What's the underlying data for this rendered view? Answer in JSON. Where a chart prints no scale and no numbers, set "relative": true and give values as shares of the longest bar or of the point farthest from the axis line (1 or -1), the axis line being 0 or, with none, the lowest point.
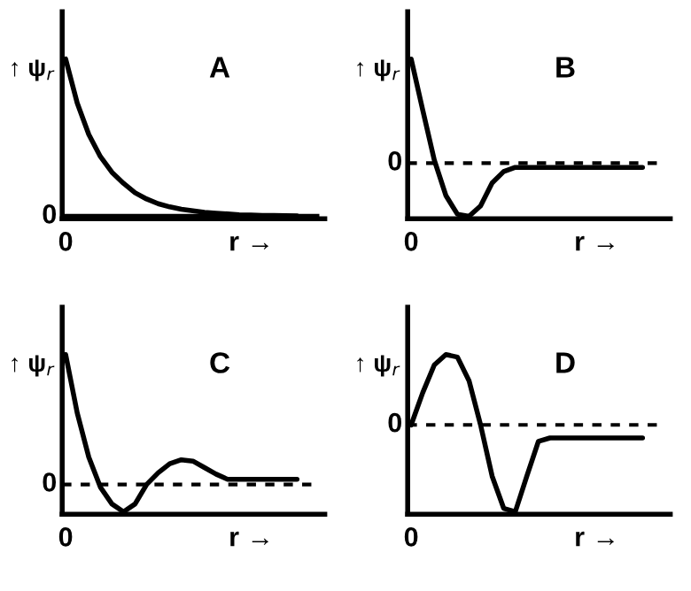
{
  "chart_data": [
    {
      "type": "line",
      "relative": true,
      "ylabel": "↑ ψ$_{r}$",
      "xlabel": "r →",
      "annotations": [
        "A",
        "0"
      ],
      "color": "#000000",
      "categories": [
        null,
        null,
        null,
        null,
        null,
        null,
        null,
        null,
        null,
        null,
        null,
        null,
        null,
        null,
        null,
        null,
        null,
        null,
        null,
        null,
        null
      ],
      "values": [
        1,
        0.72,
        0.52,
        0.38,
        0.28,
        0.21,
        0.15,
        0.11,
        0.08,
        0.06,
        0.045,
        0.035,
        0.025,
        0.02,
        0.015,
        0.01,
        0.008,
        0.006,
        0.005,
        0.004,
        0.003
      ],
      "ref_lines": [
        {
          "axis": "y",
          "value": 0,
          "label": "0",
          "line_style": "solid"
        }
      ]
    },
    {
      "type": "line",
      "relative": true,
      "ylabel": "↑ ψ$_{r}$",
      "xlabel": "r →",
      "annotations": [
        "B",
        "0"
      ],
      "color": "#000000",
      "categories": [
        null,
        null,
        null,
        null,
        null,
        null,
        null,
        null,
        null,
        null,
        null,
        null,
        null,
        null,
        null,
        null,
        null,
        null,
        null,
        null,
        null
      ],
      "values": [
        1,
        0.51,
        0.03,
        -0.31,
        -0.49,
        -0.51,
        -0.41,
        -0.19,
        -0.08,
        -0.04,
        -0.04,
        -0.04,
        -0.04,
        -0.04,
        -0.04,
        -0.04,
        -0.04,
        -0.04,
        -0.04,
        -0.04,
        -0.04
      ],
      "ref_lines": [
        {
          "axis": "y",
          "value": 0,
          "label": "0",
          "line_style": "dashed"
        }
      ]
    },
    {
      "type": "line",
      "relative": true,
      "ylabel": "↑ ψ$_{r}$",
      "xlabel": "r →",
      "annotations": [
        "C",
        "0"
      ],
      "color": "#000000",
      "categories": [
        null,
        null,
        null,
        null,
        null,
        null,
        null,
        null,
        null,
        null,
        null,
        null,
        null,
        null,
        null,
        null,
        null,
        null,
        null,
        null,
        null
      ],
      "values": [
        1,
        0.55,
        0.21,
        -0.02,
        -0.15,
        -0.21,
        -0.15,
        0,
        0.09,
        0.16,
        0.19,
        0.18,
        0.13,
        0.08,
        0.04,
        0.04,
        0.04,
        0.04,
        0.04,
        0.04,
        0.04
      ],
      "ref_lines": [
        {
          "axis": "y",
          "value": 0,
          "label": "0",
          "line_style": "dashed"
        }
      ]
    },
    {
      "type": "line",
      "relative": true,
      "ylabel": "↑ ψ$_{r}$",
      "xlabel": "r →",
      "annotations": [
        "D",
        "0"
      ],
      "color": "#000000",
      "categories": [
        null,
        null,
        null,
        null,
        null,
        null,
        null,
        null,
        null,
        null,
        null,
        null,
        null,
        null,
        null,
        null,
        null,
        null,
        null,
        null,
        null
      ],
      "values": [
        0,
        0.37,
        0.69,
        0.81,
        0.78,
        0.51,
        0,
        -0.59,
        -0.96,
        -1,
        -0.59,
        -0.19,
        -0.15,
        -0.15,
        -0.15,
        -0.15,
        -0.15,
        -0.15,
        -0.15,
        -0.15,
        -0.15
      ],
      "ref_lines": [
        {
          "axis": "y",
          "value": 0,
          "label": "0",
          "line_style": "dashed"
        }
      ]
    }
  ]
}
